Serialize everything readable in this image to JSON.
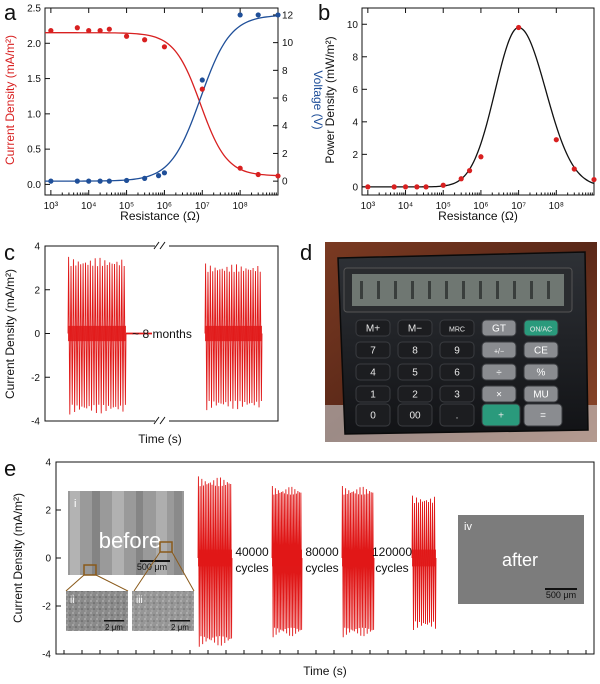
{
  "panels": {
    "a": "a",
    "b": "b",
    "c": "c",
    "d": "d",
    "e": "e"
  },
  "chart_data": [
    {
      "panel": "a",
      "type": "scatter",
      "xlabel": "Resistance (Ω)",
      "ylabel": "Current Density (mA/m²)",
      "y2label": "Voltage (V)",
      "xscale": "log",
      "xlim": [
        700,
        1000000000
      ],
      "ylim": [
        -0.15,
        2.5
      ],
      "y2lim": [
        -1,
        12.5
      ],
      "x_ticks": [
        "10³",
        "10⁴",
        "10⁵",
        "10⁶",
        "10⁷",
        "10⁸"
      ],
      "y_ticks": [
        0.0,
        0.5,
        1.0,
        1.5,
        2.0,
        2.5
      ],
      "y2_ticks": [
        0,
        2,
        4,
        6,
        8,
        10,
        12
      ],
      "colors": {
        "left": "#d82020",
        "right": "#1f4f99"
      },
      "series": [
        {
          "axis": "left",
          "x": [
            1000,
            5000,
            10000,
            20000,
            35000,
            100000,
            300000,
            1000000,
            10000000,
            100000000,
            300000000,
            1000000000
          ],
          "values": [
            2.18,
            2.22,
            2.18,
            2.18,
            2.2,
            2.1,
            2.05,
            1.95,
            1.35,
            0.23,
            0.14,
            0.12
          ],
          "fit": "sigmoid"
        },
        {
          "axis": "right",
          "x": [
            1000,
            5000,
            10000,
            20000,
            35000,
            100000,
            300000,
            700000,
            1000000,
            10000000,
            100000000,
            300000000,
            1000000000
          ],
          "values": [
            0,
            0,
            0,
            0,
            0,
            0.05,
            0.2,
            0.4,
            0.6,
            7.3,
            12,
            12,
            12
          ],
          "fit": "sigmoid"
        }
      ]
    },
    {
      "panel": "b",
      "type": "scatter",
      "xlabel": "Resistance (Ω)",
      "ylabel": "Power Density (mW/m²)",
      "xscale": "log",
      "xlim": [
        700,
        1000000000
      ],
      "ylim": [
        -0.5,
        11
      ],
      "x_ticks": [
        "10³",
        "10⁴",
        "10⁵",
        "10⁶",
        "10⁷",
        "10⁸"
      ],
      "y_ticks": [
        0,
        2,
        4,
        6,
        8,
        10
      ],
      "colors": {
        "points": "#d82020",
        "fit": "#111111"
      },
      "series": [
        {
          "x": [
            1000,
            5000,
            10000,
            20000,
            35000,
            100000,
            300000,
            500000,
            1000000,
            10000000,
            100000000,
            300000000,
            1000000000
          ],
          "values": [
            0,
            0,
            0,
            0,
            0,
            0.1,
            0.5,
            1.0,
            1.85,
            9.8,
            2.9,
            1.1,
            0.45
          ],
          "fit": "peak"
        }
      ]
    },
    {
      "panel": "c",
      "type": "line",
      "xlabel": "Time (s)",
      "ylabel": "Current Density (mA/m²)",
      "ylim": [
        -4,
        4
      ],
      "y_ticks": [
        -4,
        -2,
        0,
        2,
        4
      ],
      "color": "#e01818",
      "annotation": "~ 8 months",
      "bursts": [
        {
          "cycles": 24,
          "peak": 3.5,
          "trough": -3.7
        },
        {
          "cycles": 24,
          "peak": 3.2,
          "trough": -3.5
        }
      ]
    },
    {
      "panel": "e",
      "type": "line",
      "xlabel": "Time (s)",
      "ylabel": "Current Density (mA/m²)",
      "ylim": [
        -4,
        4
      ],
      "y_ticks": [
        -4,
        -2,
        0,
        2,
        4
      ],
      "color": "#e01818",
      "bursts": [
        {
          "cycles": 20,
          "peak": 3.4,
          "trough": -3.7
        },
        {
          "cycles": 20,
          "peak": 3.0,
          "trough": -3.3
        },
        {
          "cycles": 20,
          "peak": 3.0,
          "trough": -3.3
        },
        {
          "cycles": 12,
          "peak": 2.6,
          "trough": -3.0
        }
      ],
      "cycle_labels": [
        [
          "40000",
          "cycles"
        ],
        [
          "80000",
          "cycles"
        ],
        [
          "120000",
          "cycles"
        ]
      ]
    }
  ],
  "insets": {
    "before": {
      "tag": "i",
      "title": "before",
      "scale": "500 μm"
    },
    "zoom_a": {
      "tag": "ii",
      "scale": "2 μm"
    },
    "zoom_b": {
      "tag": "iii",
      "scale": "2 μm"
    },
    "after": {
      "tag": "iv",
      "title": "after",
      "scale": "500 μm"
    }
  },
  "calculator": {
    "keys": [
      [
        "M+",
        "M−",
        "MRC",
        "GT",
        "ON/AC"
      ],
      [
        "7",
        "8",
        "9",
        "+/−",
        "CE"
      ],
      [
        "4",
        "5",
        "6",
        "÷",
        "%"
      ],
      [
        "1",
        "2",
        "3",
        "×",
        "MU"
      ],
      [
        "0",
        "00",
        ".",
        "+",
        "="
      ]
    ],
    "display_digits": 12
  }
}
